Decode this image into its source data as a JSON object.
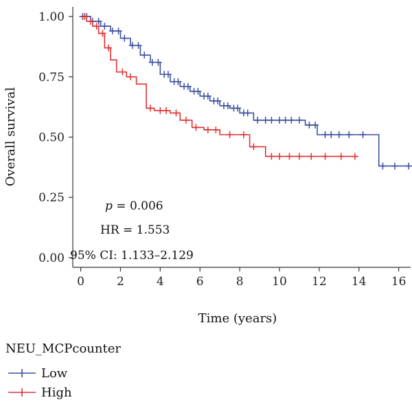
{
  "chart_data": {
    "type": "line",
    "xlabel": "Time (years)",
    "ylabel": "Overall survival",
    "xlim": [
      -0.4,
      16.6
    ],
    "ylim": [
      -0.04,
      1.04
    ],
    "x_ticks": [
      0,
      2,
      4,
      6,
      8,
      10,
      12,
      14,
      16
    ],
    "y_ticks": [
      0.0,
      0.25,
      0.5,
      0.75,
      1.0
    ],
    "y_tick_labels": [
      "0.00",
      "0.25",
      "0.50",
      "0.75",
      "1.00"
    ],
    "grid": false,
    "legend": {
      "title": "NEU_MCPcounter",
      "placement": "bottom-left"
    },
    "annotations": {
      "p_prefix": "p",
      "p_value": " = 0.006",
      "hr": "HR = 1.553",
      "ci": "95% CI: 1.133–2.129"
    },
    "series": [
      {
        "name": "Low",
        "color": "#3a4fa0",
        "steps": [
          [
            0,
            1.0
          ],
          [
            0.5,
            0.98
          ],
          [
            1,
            0.96
          ],
          [
            1.5,
            0.94
          ],
          [
            2,
            0.91
          ],
          [
            2.5,
            0.88
          ],
          [
            3,
            0.84
          ],
          [
            3.5,
            0.81
          ],
          [
            4,
            0.76
          ],
          [
            4.5,
            0.73
          ],
          [
            5,
            0.71
          ],
          [
            5.5,
            0.69
          ],
          [
            6,
            0.67
          ],
          [
            6.5,
            0.65
          ],
          [
            7,
            0.63
          ],
          [
            7.5,
            0.62
          ],
          [
            8,
            0.6
          ],
          [
            8.7,
            0.57
          ],
          [
            11.3,
            0.55
          ],
          [
            11.9,
            0.51
          ],
          [
            15.0,
            0.38
          ],
          [
            16.6,
            0.38
          ]
        ],
        "censor_x": [
          0.1,
          0.3,
          0.6,
          0.9,
          1.2,
          1.6,
          1.9,
          2.2,
          2.6,
          2.9,
          3.2,
          3.6,
          3.9,
          4.2,
          4.4,
          4.7,
          4.9,
          5.2,
          5.4,
          5.7,
          5.9,
          6.2,
          6.4,
          6.7,
          6.9,
          7.2,
          7.4,
          7.7,
          7.9,
          8.2,
          8.4,
          8.9,
          9.3,
          9.6,
          10.0,
          10.3,
          10.6,
          11.0,
          11.5,
          11.8,
          12.3,
          12.6,
          13.0,
          13.5,
          14.2,
          15.2,
          15.8,
          16.5
        ]
      },
      {
        "name": "High",
        "color": "#e03030",
        "steps": [
          [
            0,
            1.0
          ],
          [
            0.3,
            0.98
          ],
          [
            0.6,
            0.96
          ],
          [
            0.9,
            0.93
          ],
          [
            1.2,
            0.87
          ],
          [
            1.5,
            0.82
          ],
          [
            1.8,
            0.77
          ],
          [
            2.3,
            0.75
          ],
          [
            2.8,
            0.72
          ],
          [
            3.3,
            0.62
          ],
          [
            3.7,
            0.61
          ],
          [
            4.5,
            0.6
          ],
          [
            5.0,
            0.57
          ],
          [
            5.6,
            0.54
          ],
          [
            6.2,
            0.53
          ],
          [
            7.0,
            0.51
          ],
          [
            8.3,
            0.51
          ],
          [
            8.5,
            0.46
          ],
          [
            9.3,
            0.42
          ],
          [
            13.9,
            0.42
          ]
        ],
        "censor_x": [
          0.2,
          0.5,
          0.8,
          1.1,
          1.4,
          2.1,
          2.5,
          3.5,
          4.0,
          4.3,
          4.8,
          5.3,
          5.8,
          6.4,
          6.8,
          7.5,
          8.2,
          8.7,
          9.6,
          10.0,
          10.5,
          11.0,
          11.6,
          12.3,
          13.1,
          13.8
        ]
      }
    ]
  }
}
